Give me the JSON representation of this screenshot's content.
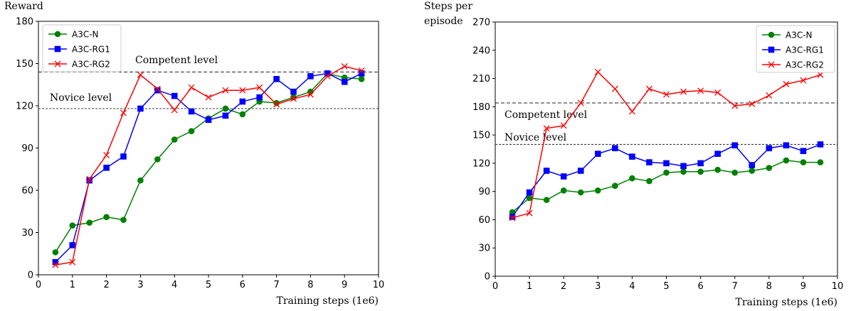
{
  "chart_data": [
    {
      "type": "line",
      "ylabel": "Reward",
      "xlabel": "Training steps (1e6)",
      "xlim": [
        0,
        10
      ],
      "ylim": [
        0,
        180
      ],
      "xticks": [
        0,
        1,
        2,
        3,
        4,
        5,
        6,
        7,
        8,
        9,
        10
      ],
      "yticks": [
        0,
        30,
        60,
        90,
        120,
        150,
        180
      ],
      "legend_position": "top-left",
      "reference_lines": [
        {
          "label": "Competent level",
          "value": 144
        },
        {
          "label": "Novice level",
          "value": 118
        }
      ],
      "x": [
        0.5,
        1,
        1.5,
        2,
        2.5,
        3,
        3.5,
        4,
        4.5,
        5,
        5.5,
        6,
        6.5,
        7,
        7.5,
        8,
        8.5,
        9,
        9.5
      ],
      "series": [
        {
          "name": "A3C-N",
          "color": "#008000",
          "marker": "circle",
          "values": [
            16,
            35,
            37,
            41,
            39,
            67,
            82,
            96,
            102,
            111,
            118,
            114,
            123,
            122,
            126,
            130,
            143,
            140,
            139
          ]
        },
        {
          "name": "A3C-RG1",
          "color": "#0000ff",
          "marker": "square",
          "values": [
            9,
            21,
            67,
            76,
            84,
            118,
            131,
            127,
            116,
            110,
            113,
            123,
            126,
            139,
            130,
            141,
            143,
            137,
            143
          ]
        },
        {
          "name": "A3C-RG2",
          "color": "#ff0000",
          "marker": "x",
          "values": [
            7,
            9,
            68,
            85,
            115,
            142,
            132,
            117,
            133,
            126,
            131,
            131,
            133,
            121,
            125,
            128,
            141,
            148,
            145
          ]
        }
      ]
    },
    {
      "type": "line",
      "ylabel": "Steps per episode",
      "xlabel": "Training steps (1e6)",
      "xlim": [
        0,
        10
      ],
      "ylim": [
        0,
        270
      ],
      "xticks": [
        0,
        1,
        2,
        3,
        4,
        5,
        6,
        7,
        8,
        9,
        10
      ],
      "yticks": [
        0,
        30,
        60,
        90,
        120,
        150,
        180,
        210,
        240,
        270
      ],
      "legend_position": "top-right",
      "reference_lines": [
        {
          "label": "Competent level",
          "value": 184
        },
        {
          "label": "Novice level",
          "value": 140
        }
      ],
      "x": [
        0.5,
        1,
        1.5,
        2,
        2.5,
        3,
        3.5,
        4,
        4.5,
        5,
        5.5,
        6,
        6.5,
        7,
        7.5,
        8,
        8.5,
        9,
        9.5
      ],
      "series": [
        {
          "name": "A3C-N",
          "color": "#008000",
          "marker": "circle",
          "values": [
            68,
            83,
            81,
            91,
            89,
            91,
            96,
            104,
            101,
            110,
            111,
            111,
            113,
            110,
            112,
            115,
            123,
            121,
            121
          ]
        },
        {
          "name": "A3C-RG1",
          "color": "#0000ff",
          "marker": "square",
          "values": [
            63,
            89,
            112,
            106,
            112,
            130,
            136,
            127,
            121,
            120,
            117,
            120,
            130,
            139,
            118,
            136,
            139,
            133,
            140
          ]
        },
        {
          "name": "A3C-RG2",
          "color": "#ff0000",
          "marker": "x",
          "values": [
            62,
            67,
            157,
            160,
            184,
            217,
            199,
            175,
            199,
            193,
            196,
            197,
            195,
            181,
            183,
            192,
            204,
            208,
            214
          ]
        }
      ]
    }
  ]
}
